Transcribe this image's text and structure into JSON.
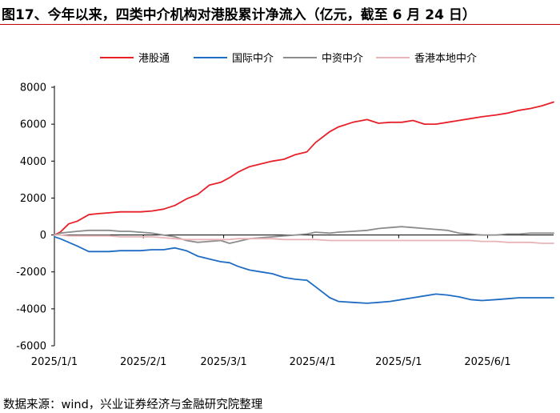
{
  "header": {
    "title": "图17、今年以来，四类中介机构对港股累计净流入（亿元，截至 6 月 24 日）"
  },
  "footer": {
    "source": "数据来源：wind，兴业证券经济与金融研究院整理"
  },
  "chart_data": {
    "type": "line",
    "title": "图17、今年以来，四类中介机构对港股累计净流入（亿元，截至 6 月 24 日）",
    "xlabel": "",
    "ylabel": "",
    "ylim": [
      -6000,
      8000
    ],
    "yticks": [
      -6000,
      -4000,
      -2000,
      0,
      2000,
      4000,
      6000,
      8000
    ],
    "yticklabels": [
      "-6000",
      "-4000",
      "-2000",
      "0",
      "2000",
      "4000",
      "6000",
      "8000"
    ],
    "xlim": [
      "2025-01-01",
      "2025-06-24"
    ],
    "xticks": [
      "2025-01-01",
      "2025-02-01",
      "2025-03-01",
      "2025-04-01",
      "2025-05-01",
      "2025-06-01"
    ],
    "xticklabels": [
      "2025/1/1",
      "2025/2/1",
      "2025/3/1",
      "2025/4/1",
      "2025/5/1",
      "2025/6/1"
    ],
    "grid": false,
    "legend_position": "top",
    "series": [
      {
        "name": "港股通",
        "color": "#e8202a",
        "x": [
          "2025-01-01",
          "2025-01-03",
          "2025-01-06",
          "2025-01-09",
          "2025-01-13",
          "2025-01-16",
          "2025-01-20",
          "2025-01-24",
          "2025-01-27",
          "2025-01-31",
          "2025-02-04",
          "2025-02-08",
          "2025-02-12",
          "2025-02-16",
          "2025-02-20",
          "2025-02-24",
          "2025-02-28",
          "2025-03-03",
          "2025-03-06",
          "2025-03-10",
          "2025-03-14",
          "2025-03-18",
          "2025-03-22",
          "2025-03-26",
          "2025-03-30",
          "2025-04-02",
          "2025-04-07",
          "2025-04-10",
          "2025-04-15",
          "2025-04-20",
          "2025-04-24",
          "2025-04-28",
          "2025-05-02",
          "2025-05-06",
          "2025-05-10",
          "2025-05-14",
          "2025-05-18",
          "2025-05-22",
          "2025-05-26",
          "2025-05-30",
          "2025-06-04",
          "2025-06-08",
          "2025-06-12",
          "2025-06-16",
          "2025-06-20",
          "2025-06-24"
        ],
        "values": [
          0,
          150,
          600,
          750,
          1100,
          1150,
          1200,
          1250,
          1250,
          1250,
          1300,
          1400,
          1600,
          1950,
          2200,
          2700,
          2850,
          3100,
          3400,
          3700,
          3850,
          4000,
          4100,
          4350,
          4500,
          5000,
          5600,
          5850,
          6100,
          6250,
          6050,
          6100,
          6100,
          6200,
          6000,
          6000,
          6100,
          6200,
          6300,
          6400,
          6500,
          6600,
          6750,
          6850,
          7000,
          7200
        ]
      },
      {
        "name": "国际中介",
        "color": "#1f6cc4",
        "x": [
          "2025-01-01",
          "2025-01-03",
          "2025-01-06",
          "2025-01-09",
          "2025-01-13",
          "2025-01-16",
          "2025-01-20",
          "2025-01-24",
          "2025-01-27",
          "2025-01-31",
          "2025-02-04",
          "2025-02-08",
          "2025-02-12",
          "2025-02-16",
          "2025-02-20",
          "2025-02-24",
          "2025-02-28",
          "2025-03-03",
          "2025-03-06",
          "2025-03-10",
          "2025-03-14",
          "2025-03-18",
          "2025-03-22",
          "2025-03-26",
          "2025-03-30",
          "2025-04-02",
          "2025-04-07",
          "2025-04-10",
          "2025-04-15",
          "2025-04-20",
          "2025-04-24",
          "2025-04-28",
          "2025-05-02",
          "2025-05-06",
          "2025-05-10",
          "2025-05-14",
          "2025-05-18",
          "2025-05-22",
          "2025-05-26",
          "2025-05-30",
          "2025-06-04",
          "2025-06-08",
          "2025-06-12",
          "2025-06-16",
          "2025-06-20",
          "2025-06-24"
        ],
        "values": [
          -100,
          -200,
          -400,
          -600,
          -900,
          -900,
          -900,
          -850,
          -850,
          -850,
          -800,
          -800,
          -700,
          -850,
          -1150,
          -1300,
          -1450,
          -1500,
          -1700,
          -1900,
          -2000,
          -2100,
          -2300,
          -2400,
          -2450,
          -2800,
          -3400,
          -3600,
          -3650,
          -3700,
          -3650,
          -3600,
          -3500,
          -3400,
          -3300,
          -3200,
          -3250,
          -3350,
          -3500,
          -3550,
          -3500,
          -3450,
          -3400,
          -3400,
          -3400,
          -3400
        ]
      },
      {
        "name": "中资中介",
        "color": "#8c8c8c",
        "x": [
          "2025-01-01",
          "2025-01-03",
          "2025-01-06",
          "2025-01-09",
          "2025-01-13",
          "2025-01-16",
          "2025-01-20",
          "2025-01-24",
          "2025-01-27",
          "2025-01-31",
          "2025-02-04",
          "2025-02-08",
          "2025-02-12",
          "2025-02-16",
          "2025-02-20",
          "2025-02-24",
          "2025-02-28",
          "2025-03-03",
          "2025-03-06",
          "2025-03-10",
          "2025-03-14",
          "2025-03-18",
          "2025-03-22",
          "2025-03-26",
          "2025-03-30",
          "2025-04-02",
          "2025-04-07",
          "2025-04-10",
          "2025-04-15",
          "2025-04-20",
          "2025-04-24",
          "2025-04-28",
          "2025-05-02",
          "2025-05-06",
          "2025-05-10",
          "2025-05-14",
          "2025-05-18",
          "2025-05-22",
          "2025-05-26",
          "2025-05-30",
          "2025-06-04",
          "2025-06-08",
          "2025-06-12",
          "2025-06-16",
          "2025-06-20",
          "2025-06-24"
        ],
        "values": [
          0,
          100,
          150,
          200,
          250,
          250,
          250,
          200,
          200,
          150,
          100,
          0,
          -100,
          -300,
          -400,
          -350,
          -300,
          -450,
          -350,
          -200,
          -150,
          -100,
          -50,
          0,
          50,
          150,
          100,
          150,
          200,
          250,
          350,
          400,
          450,
          400,
          350,
          300,
          250,
          100,
          50,
          0,
          0,
          50,
          50,
          100,
          100,
          100
        ]
      },
      {
        "name": "香港本地中介",
        "color": "#e8b4b8",
        "x": [
          "2025-01-01",
          "2025-01-03",
          "2025-01-06",
          "2025-01-09",
          "2025-01-13",
          "2025-01-16",
          "2025-01-20",
          "2025-01-24",
          "2025-01-27",
          "2025-01-31",
          "2025-02-04",
          "2025-02-08",
          "2025-02-12",
          "2025-02-16",
          "2025-02-20",
          "2025-02-24",
          "2025-02-28",
          "2025-03-03",
          "2025-03-06",
          "2025-03-10",
          "2025-03-14",
          "2025-03-18",
          "2025-03-22",
          "2025-03-26",
          "2025-03-30",
          "2025-04-02",
          "2025-04-07",
          "2025-04-10",
          "2025-04-15",
          "2025-04-20",
          "2025-04-24",
          "2025-04-28",
          "2025-05-02",
          "2025-05-06",
          "2025-05-10",
          "2025-05-14",
          "2025-05-18",
          "2025-05-22",
          "2025-05-26",
          "2025-05-30",
          "2025-06-04",
          "2025-06-08",
          "2025-06-12",
          "2025-06-16",
          "2025-06-20",
          "2025-06-24"
        ],
        "values": [
          0,
          0,
          -50,
          -50,
          -50,
          -50,
          -50,
          -100,
          -100,
          -100,
          -100,
          -150,
          -200,
          -250,
          -250,
          -250,
          -250,
          -250,
          -200,
          -200,
          -200,
          -200,
          -250,
          -250,
          -250,
          -250,
          -300,
          -300,
          -300,
          -300,
          -300,
          -300,
          -300,
          -300,
          -300,
          -300,
          -300,
          -300,
          -300,
          -350,
          -350,
          -400,
          -400,
          -400,
          -450,
          -450
        ]
      }
    ]
  }
}
